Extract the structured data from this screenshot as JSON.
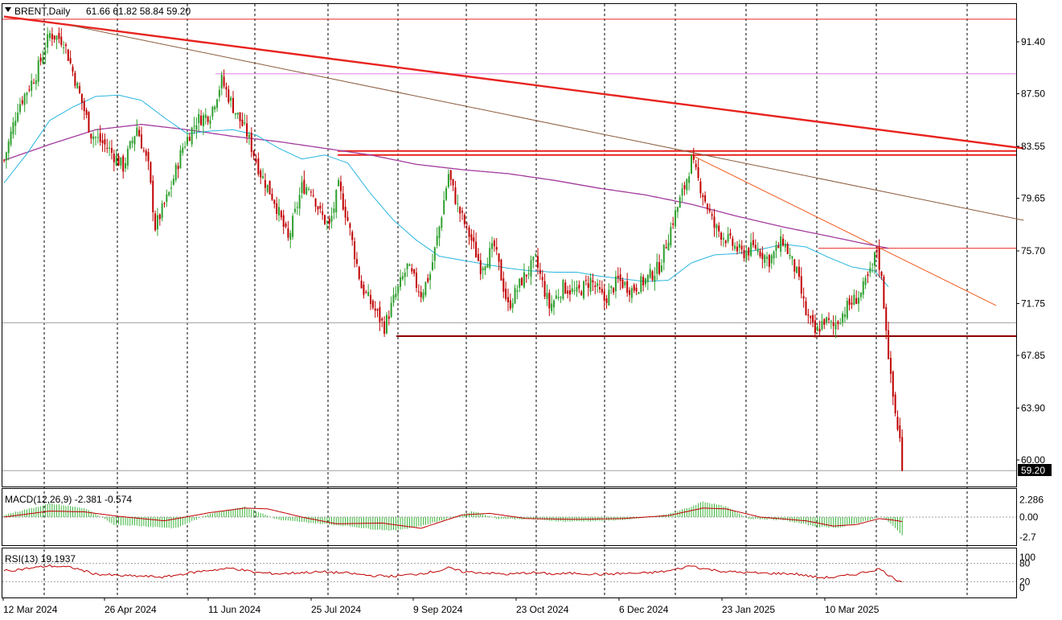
{
  "header": {
    "symbol": "BRENT,Daily",
    "ohlc": "61.66 61.82 58.84 59.20",
    "collapse_icon": "triangle-down-icon"
  },
  "price_axis": {
    "labels": [
      "91.40",
      "87.50",
      "83.55",
      "79.65",
      "75.70",
      "71.75",
      "67.85",
      "63.90",
      "60.00"
    ],
    "current_price": "59.20"
  },
  "date_axis": {
    "labels": [
      "12 Mar 2024",
      "26 Apr 2024",
      "11 Jun 2024",
      "25 Jul 2024",
      "9 Sep 2024",
      "23 Oct 2024",
      "6 Dec 2024",
      "23 Jan 2025",
      "10 Mar 2025"
    ]
  },
  "macd": {
    "title": "MACD(12,26,9) -2.381 -0.574",
    "axis_labels": [
      "2.286",
      "0.00",
      "-2.7"
    ]
  },
  "rsi": {
    "title": "RSI(13) 19.1937",
    "axis_labels": [
      "100",
      "80",
      "20",
      "0"
    ]
  },
  "colors": {
    "bull_candle": "#2ea02e",
    "bear_candle": "#c00000",
    "resistance_line": "#e8231f",
    "support_line": "#8b0000",
    "ma_fast": "#27b5e0",
    "ma_slow": "#a33b9e",
    "trend_brown": "#8b5a3c",
    "trend_orange": "#f05a1e",
    "macd_hist": "#3cb43c",
    "macd_signal": "#c00000",
    "rsi_line": "#c00000"
  },
  "chart_data": [
    {
      "type": "candlestick",
      "title": "BRENT,Daily",
      "ylim": [
        58.5,
        94.0
      ],
      "x_ticks": [
        "12 Mar 2024",
        "26 Apr 2024",
        "11 Jun 2024",
        "25 Jul 2024",
        "9 Sep 2024",
        "23 Oct 2024",
        "6 Dec 2024",
        "23 Jan 2025",
        "10 Mar 2025"
      ],
      "y_ticks": [
        91.4,
        87.5,
        83.55,
        79.65,
        75.7,
        71.75,
        67.85,
        63.9,
        60.0
      ],
      "last_price": 59.2,
      "close_anchors": [
        [
          0,
          82.5
        ],
        [
          6,
          86.5
        ],
        [
          14,
          89.0
        ],
        [
          20,
          92.0
        ],
        [
          26,
          91.5
        ],
        [
          32,
          88.0
        ],
        [
          38,
          84.5
        ],
        [
          45,
          83.5
        ],
        [
          52,
          82.0
        ],
        [
          58,
          85.0
        ],
        [
          63,
          82.0
        ],
        [
          66,
          77.5
        ],
        [
          72,
          80.0
        ],
        [
          78,
          83.5
        ],
        [
          84,
          85.5
        ],
        [
          90,
          86.0
        ],
        [
          95,
          88.5
        ],
        [
          100,
          86.5
        ],
        [
          106,
          84.5
        ],
        [
          112,
          81.5
        ],
        [
          118,
          79.5
        ],
        [
          124,
          76.5
        ],
        [
          130,
          80.5
        ],
        [
          134,
          80.5
        ],
        [
          138,
          78.5
        ],
        [
          142,
          77.5
        ],
        [
          146,
          80.5
        ],
        [
          150,
          78.0
        ],
        [
          156,
          73.0
        ],
        [
          161,
          71.5
        ],
        [
          166,
          70.0
        ],
        [
          170,
          72.0
        ],
        [
          176,
          74.5
        ],
        [
          182,
          72.5
        ],
        [
          186,
          74.0
        ],
        [
          190,
          77.5
        ],
        [
          194,
          81.5
        ],
        [
          198,
          79.0
        ],
        [
          204,
          76.5
        ],
        [
          208,
          74.5
        ],
        [
          214,
          76.0
        ],
        [
          220,
          71.5
        ],
        [
          226,
          73.5
        ],
        [
          232,
          75.0
        ],
        [
          238,
          71.5
        ],
        [
          244,
          73.0
        ],
        [
          250,
          72.5
        ],
        [
          256,
          73.5
        ],
        [
          262,
          72.0
        ],
        [
          268,
          73.5
        ],
        [
          274,
          72.8
        ],
        [
          280,
          73.5
        ],
        [
          286,
          74.5
        ],
        [
          292,
          78.0
        ],
        [
          297,
          80.5
        ],
        [
          300,
          82.5
        ],
        [
          305,
          80.0
        ],
        [
          310,
          77.5
        ],
        [
          316,
          76.5
        ],
        [
          322,
          75.5
        ],
        [
          328,
          76.0
        ],
        [
          334,
          75.0
        ],
        [
          340,
          76.5
        ],
        [
          346,
          74.0
        ],
        [
          350,
          71.0
        ],
        [
          354,
          69.5
        ],
        [
          358,
          70.5
        ],
        [
          362,
          70.0
        ],
        [
          368,
          71.5
        ],
        [
          374,
          72.5
        ],
        [
          378,
          74.0
        ],
        [
          381,
          75.8
        ],
        [
          383,
          73.5
        ],
        [
          385,
          70.0
        ],
        [
          387,
          66.0
        ],
        [
          389,
          63.5
        ],
        [
          391,
          61.5
        ],
        [
          392,
          59.2
        ]
      ],
      "ma_fast_anchors": [
        [
          0,
          80.8
        ],
        [
          10,
          83.0
        ],
        [
          20,
          85.5
        ],
        [
          30,
          86.5
        ],
        [
          40,
          87.3
        ],
        [
          50,
          87.4
        ],
        [
          60,
          87.0
        ],
        [
          70,
          85.7
        ],
        [
          80,
          84.5
        ],
        [
          90,
          84.7
        ],
        [
          100,
          84.8
        ],
        [
          110,
          84.4
        ],
        [
          120,
          83.4
        ],
        [
          130,
          82.6
        ],
        [
          140,
          82.9
        ],
        [
          150,
          82.3
        ],
        [
          160,
          80.0
        ],
        [
          170,
          78.0
        ],
        [
          180,
          76.5
        ],
        [
          190,
          75.3
        ],
        [
          200,
          75.0
        ],
        [
          210,
          74.7
        ],
        [
          220,
          74.4
        ],
        [
          230,
          74.2
        ],
        [
          240,
          74.1
        ],
        [
          250,
          74.1
        ],
        [
          260,
          73.8
        ],
        [
          270,
          73.6
        ],
        [
          280,
          73.4
        ],
        [
          290,
          73.5
        ],
        [
          300,
          74.8
        ],
        [
          310,
          75.4
        ],
        [
          320,
          75.5
        ],
        [
          330,
          75.8
        ],
        [
          340,
          76.2
        ],
        [
          350,
          76.0
        ],
        [
          360,
          75.2
        ],
        [
          370,
          74.5
        ],
        [
          380,
          74.2
        ],
        [
          386,
          73.0
        ]
      ],
      "ma_slow_anchors": [
        [
          0,
          82.5
        ],
        [
          20,
          83.7
        ],
        [
          40,
          84.8
        ],
        [
          60,
          85.2
        ],
        [
          80,
          84.8
        ],
        [
          100,
          84.3
        ],
        [
          120,
          83.9
        ],
        [
          140,
          83.4
        ],
        [
          160,
          82.9
        ],
        [
          180,
          82.2
        ],
        [
          200,
          81.8
        ],
        [
          220,
          81.5
        ],
        [
          240,
          81.0
        ],
        [
          260,
          80.4
        ],
        [
          280,
          79.9
        ],
        [
          300,
          79.2
        ],
        [
          320,
          78.3
        ],
        [
          340,
          77.5
        ],
        [
          360,
          76.8
        ],
        [
          374,
          76.3
        ],
        [
          386,
          75.9
        ]
      ],
      "horizontal_levels": [
        {
          "value": 93.1,
          "color": "#e8231f"
        },
        {
          "value": 89.0,
          "color": "#e080e0"
        },
        {
          "value": 83.2,
          "color": "#e8231f"
        },
        {
          "value": 82.9,
          "color": "#e8231f"
        },
        {
          "value": 75.9,
          "color": "#e8231f"
        },
        {
          "value": 69.3,
          "color": "#8b0000"
        },
        {
          "value": 70.3,
          "color": "#a0a0a0"
        },
        {
          "value": 59.2,
          "color": "#a0a0a0"
        }
      ],
      "trend_lines": [
        {
          "from": [
            0,
            93.3
          ],
          "to": [
            445,
            83.4
          ],
          "color": "#e8231f",
          "width": 2.4
        },
        {
          "from": [
            30,
            92.6
          ],
          "to": [
            445,
            78.0
          ],
          "color": "#8b5a3c",
          "width": 1
        },
        {
          "from": [
            300,
            82.9
          ],
          "to": [
            433,
            71.6
          ],
          "color": "#f05a1e",
          "width": 1
        }
      ]
    },
    {
      "type": "bar",
      "title": "MACD(12,26,9)",
      "macd_main": -2.381,
      "macd_signal": -0.574,
      "y_ticks": [
        2.286,
        0.0,
        -2.7
      ],
      "hist_anchors": [
        [
          0,
          0.3
        ],
        [
          20,
          1.8
        ],
        [
          35,
          1.2
        ],
        [
          48,
          -1.0
        ],
        [
          60,
          -1.2
        ],
        [
          75,
          -1.5
        ],
        [
          90,
          0.5
        ],
        [
          105,
          1.4
        ],
        [
          120,
          -0.4
        ],
        [
          135,
          -0.8
        ],
        [
          150,
          -1.2
        ],
        [
          160,
          -1.6
        ],
        [
          170,
          -1.8
        ],
        [
          182,
          -1.2
        ],
        [
          194,
          -0.2
        ],
        [
          205,
          0.8
        ],
        [
          215,
          -0.2
        ],
        [
          230,
          -0.3
        ],
        [
          245,
          -0.6
        ],
        [
          260,
          -0.5
        ],
        [
          275,
          -0.3
        ],
        [
          290,
          0.4
        ],
        [
          300,
          1.4
        ],
        [
          305,
          2.1
        ],
        [
          315,
          1.4
        ],
        [
          325,
          -0.2
        ],
        [
          340,
          -0.4
        ],
        [
          355,
          -1.3
        ],
        [
          365,
          -1.4
        ],
        [
          375,
          -0.6
        ],
        [
          383,
          0.1
        ],
        [
          388,
          -1.2
        ],
        [
          392,
          -2.4
        ]
      ],
      "signal_anchors": [
        [
          0,
          0.0
        ],
        [
          20,
          0.8
        ],
        [
          35,
          0.7
        ],
        [
          50,
          0.1
        ],
        [
          70,
          -0.5
        ],
        [
          90,
          0.6
        ],
        [
          105,
          1.2
        ],
        [
          115,
          1.1
        ],
        [
          130,
          0.0
        ],
        [
          145,
          -0.9
        ],
        [
          165,
          -0.8
        ],
        [
          182,
          -1.5
        ],
        [
          200,
          0.3
        ],
        [
          212,
          0.5
        ],
        [
          228,
          -0.2
        ],
        [
          250,
          -0.3
        ],
        [
          270,
          -0.2
        ],
        [
          290,
          0.2
        ],
        [
          305,
          1.2
        ],
        [
          315,
          1.1
        ],
        [
          330,
          0.0
        ],
        [
          350,
          -0.5
        ],
        [
          362,
          -1.2
        ],
        [
          372,
          -1.0
        ],
        [
          382,
          -0.2
        ],
        [
          388,
          -0.4
        ],
        [
          392,
          -0.6
        ]
      ]
    },
    {
      "type": "line",
      "title": "RSI(13)",
      "last_value": 19.1937,
      "ylim": [
        0,
        100
      ],
      "levels": [
        80,
        20
      ],
      "anchors": [
        [
          0,
          55
        ],
        [
          10,
          63
        ],
        [
          20,
          72
        ],
        [
          30,
          66
        ],
        [
          40,
          45
        ],
        [
          50,
          40
        ],
        [
          60,
          38
        ],
        [
          70,
          35
        ],
        [
          80,
          48
        ],
        [
          90,
          58
        ],
        [
          100,
          64
        ],
        [
          110,
          50
        ],
        [
          120,
          46
        ],
        [
          130,
          50
        ],
        [
          140,
          52
        ],
        [
          150,
          48
        ],
        [
          160,
          40
        ],
        [
          170,
          38
        ],
        [
          180,
          45
        ],
        [
          190,
          56
        ],
        [
          194,
          65
        ],
        [
          200,
          53
        ],
        [
          210,
          49
        ],
        [
          220,
          44
        ],
        [
          230,
          50
        ],
        [
          240,
          45
        ],
        [
          250,
          48
        ],
        [
          260,
          44
        ],
        [
          270,
          47
        ],
        [
          280,
          48
        ],
        [
          290,
          55
        ],
        [
          297,
          67
        ],
        [
          300,
          73
        ],
        [
          305,
          63
        ],
        [
          315,
          53
        ],
        [
          330,
          48
        ],
        [
          345,
          46
        ],
        [
          355,
          34
        ],
        [
          362,
          34
        ],
        [
          372,
          45
        ],
        [
          382,
          62
        ],
        [
          385,
          48
        ],
        [
          388,
          32
        ],
        [
          392,
          19
        ]
      ]
    }
  ]
}
